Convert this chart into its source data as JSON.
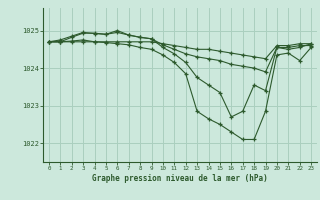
{
  "bg_color": "#cce8dc",
  "grid_color": "#aacfbf",
  "line_color": "#2d5a2d",
  "title": "Graphe pression niveau de la mer (hPa)",
  "ylabel_ticks": [
    1022,
    1023,
    1024,
    1025
  ],
  "xlim": [
    -0.5,
    23.5
  ],
  "ylim": [
    1021.5,
    1025.6
  ],
  "series": [
    {
      "x": [
        0,
        1,
        2,
        3,
        4,
        5,
        6,
        7,
        8,
        9,
        10,
        11,
        12,
        13,
        14,
        15,
        16,
        17,
        18,
        19,
        20,
        21,
        22,
        23
      ],
      "y": [
        1024.7,
        1024.7,
        1024.7,
        1024.7,
        1024.7,
        1024.7,
        1024.7,
        1024.7,
        1024.7,
        1024.7,
        1024.65,
        1024.6,
        1024.55,
        1024.5,
        1024.5,
        1024.45,
        1024.4,
        1024.35,
        1024.3,
        1024.25,
        1024.6,
        1024.6,
        1024.65,
        1024.65
      ]
    },
    {
      "x": [
        0,
        1,
        2,
        3,
        4,
        5,
        6,
        7,
        8,
        9,
        10,
        11,
        12,
        13,
        14,
        15,
        16,
        17,
        18,
        19,
        20,
        21,
        22,
        23
      ],
      "y": [
        1024.7,
        1024.7,
        1024.82,
        1024.93,
        1024.93,
        1024.9,
        1024.95,
        1024.88,
        1024.82,
        1024.78,
        1024.62,
        1024.5,
        1024.38,
        1024.3,
        1024.25,
        1024.2,
        1024.1,
        1024.05,
        1024.0,
        1023.9,
        1024.55,
        1024.55,
        1024.6,
        1024.6
      ]
    },
    {
      "x": [
        0,
        1,
        2,
        3,
        4,
        5,
        6,
        7,
        8,
        9,
        10,
        11,
        12,
        13,
        14,
        15,
        16,
        17,
        18,
        19,
        20,
        21,
        22,
        23
      ],
      "y": [
        1024.7,
        1024.75,
        1024.85,
        1024.95,
        1024.92,
        1024.9,
        1025.0,
        1024.88,
        1024.82,
        1024.78,
        1024.55,
        1024.38,
        1024.15,
        1023.75,
        1023.55,
        1023.35,
        1022.7,
        1022.85,
        1023.55,
        1023.4,
        1024.55,
        1024.5,
        1024.55,
        1024.65
      ]
    },
    {
      "x": [
        0,
        1,
        2,
        3,
        4,
        5,
        6,
        7,
        8,
        9,
        10,
        11,
        12,
        13,
        14,
        15,
        16,
        17,
        18,
        19,
        20,
        21,
        22,
        23
      ],
      "y": [
        1024.7,
        1024.7,
        1024.72,
        1024.75,
        1024.7,
        1024.68,
        1024.65,
        1024.62,
        1024.55,
        1024.5,
        1024.35,
        1024.15,
        1023.85,
        1022.85,
        1022.65,
        1022.5,
        1022.3,
        1022.1,
        1022.1,
        1022.85,
        1024.35,
        1024.4,
        1024.2,
        1024.55
      ]
    }
  ]
}
